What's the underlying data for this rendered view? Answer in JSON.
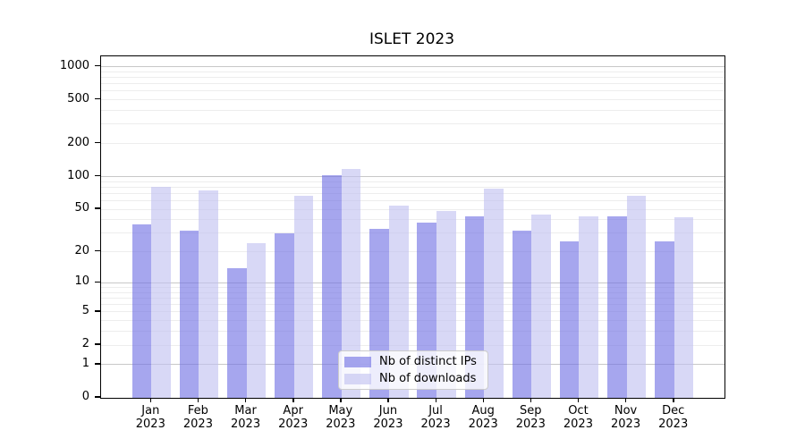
{
  "title": "ISLET 2023",
  "chart_data": {
    "type": "bar",
    "title": "ISLET 2023",
    "categories": [
      "Jan",
      "Feb",
      "Mar",
      "Apr",
      "May",
      "Jun",
      "Jul",
      "Aug",
      "Sep",
      "Oct",
      "Nov",
      "Dec"
    ],
    "category_year": "2023",
    "series": [
      {
        "name": "Nb of distinct IPs",
        "color": "rgba(112,112,228,0.62)",
        "values": [
          36,
          32,
          14,
          30,
          103,
          33,
          38,
          43,
          32,
          25,
          43,
          25
        ]
      },
      {
        "name": "Nb of downloads",
        "color": "rgba(192,192,240,0.62)",
        "values": [
          81,
          75,
          24,
          67,
          118,
          54,
          48,
          78,
          45,
          43,
          67,
          42
        ]
      }
    ],
    "yscale": "log1p",
    "y_ticks": [
      0,
      1,
      2,
      5,
      10,
      20,
      50,
      100,
      200,
      500,
      1000
    ],
    "ylim": [
      0,
      1241
    ],
    "grid": "major-decades-solid, minor-faint",
    "legend_position": "lower center",
    "colors": {
      "grid_major": "#c8c8c8",
      "grid_minor": "#ededed",
      "axis": "#000000",
      "background": "#ffffff"
    }
  }
}
